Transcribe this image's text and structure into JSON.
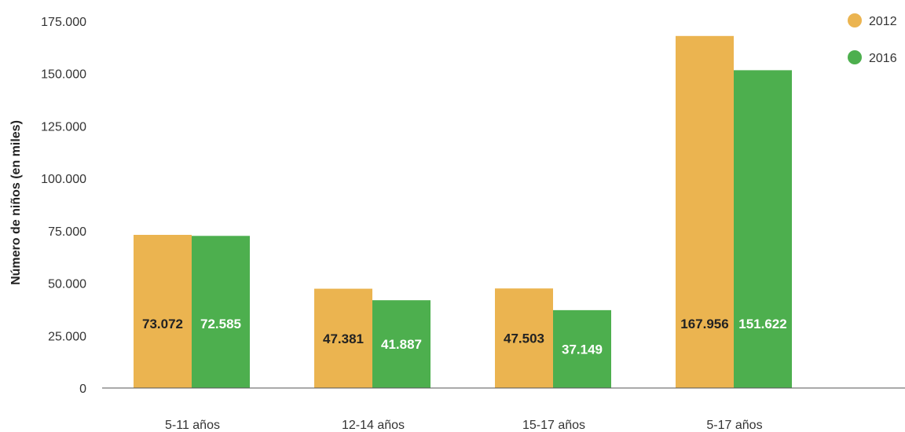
{
  "chart_data": {
    "type": "bar",
    "ylabel": "Número de niños (en miles)",
    "xlabel": "",
    "categories": [
      "5-11 años",
      "12-14 años",
      "15-17 años",
      "5-17 años"
    ],
    "series": [
      {
        "name": "2012",
        "color": "#EBB450",
        "label_color": "#222222",
        "values": [
          73072,
          47381,
          47503,
          167956
        ],
        "value_labels": [
          "73.072",
          "47.381",
          "47.503",
          "167.956"
        ]
      },
      {
        "name": "2016",
        "color": "#4DAF4E",
        "label_color": "#ffffff",
        "values": [
          72585,
          41887,
          37149,
          151622
        ],
        "value_labels": [
          "72.585",
          "41.887",
          "37.149",
          "151.622"
        ]
      }
    ],
    "ylim": [
      0,
      175000
    ],
    "yticks": [
      0,
      25000,
      50000,
      75000,
      100000,
      125000,
      150000,
      175000
    ],
    "ytick_labels": [
      "0",
      "25.000",
      "50.000",
      "75.000",
      "100.000",
      "125.000",
      "150.000",
      "175.000"
    ],
    "grid": false,
    "legend_position": "top-right"
  }
}
